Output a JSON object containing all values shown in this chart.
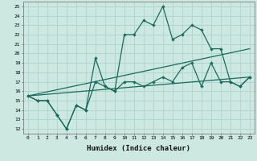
{
  "xlabel": "Humidex (Indice chaleur)",
  "ylabel": "",
  "bg_color": "#cce8e0",
  "grid_color": "#aad4cc",
  "line_color": "#1a6b5e",
  "xlim": [
    -0.5,
    23.5
  ],
  "ylim": [
    11.5,
    25.5
  ],
  "xticks": [
    0,
    1,
    2,
    3,
    4,
    5,
    6,
    7,
    8,
    9,
    10,
    11,
    12,
    13,
    14,
    15,
    16,
    17,
    18,
    19,
    20,
    21,
    22,
    23
  ],
  "yticks": [
    12,
    13,
    14,
    15,
    16,
    17,
    18,
    19,
    20,
    21,
    22,
    23,
    24,
    25
  ],
  "series": {
    "line1": {
      "x": [
        0,
        1,
        2,
        3,
        4,
        5,
        6,
        7,
        8,
        9,
        10,
        11,
        12,
        13,
        14,
        15,
        16,
        17,
        18,
        19,
        20,
        21,
        22,
        23
      ],
      "y": [
        15.5,
        15.0,
        15.0,
        13.5,
        12.0,
        14.5,
        14.0,
        19.5,
        16.5,
        16.0,
        22.0,
        22.0,
        23.5,
        23.0,
        25.0,
        21.5,
        22.0,
        23.0,
        22.5,
        20.5,
        20.5,
        17.0,
        16.5,
        17.5
      ]
    },
    "line2": {
      "x": [
        0,
        1,
        2,
        3,
        4,
        5,
        6,
        7,
        8,
        9,
        10,
        11,
        12,
        13,
        14,
        15,
        16,
        17,
        18,
        19,
        20,
        21,
        22,
        23
      ],
      "y": [
        15.5,
        15.0,
        15.0,
        13.5,
        12.0,
        14.5,
        14.0,
        17.0,
        16.5,
        16.0,
        17.0,
        17.0,
        16.5,
        17.0,
        17.5,
        17.0,
        18.5,
        19.0,
        16.5,
        19.0,
        17.0,
        17.0,
        16.5,
        17.5
      ]
    },
    "line3": {
      "x": [
        0,
        23
      ],
      "y": [
        15.5,
        17.5
      ]
    },
    "line4": {
      "x": [
        0,
        23
      ],
      "y": [
        15.5,
        20.5
      ]
    }
  }
}
